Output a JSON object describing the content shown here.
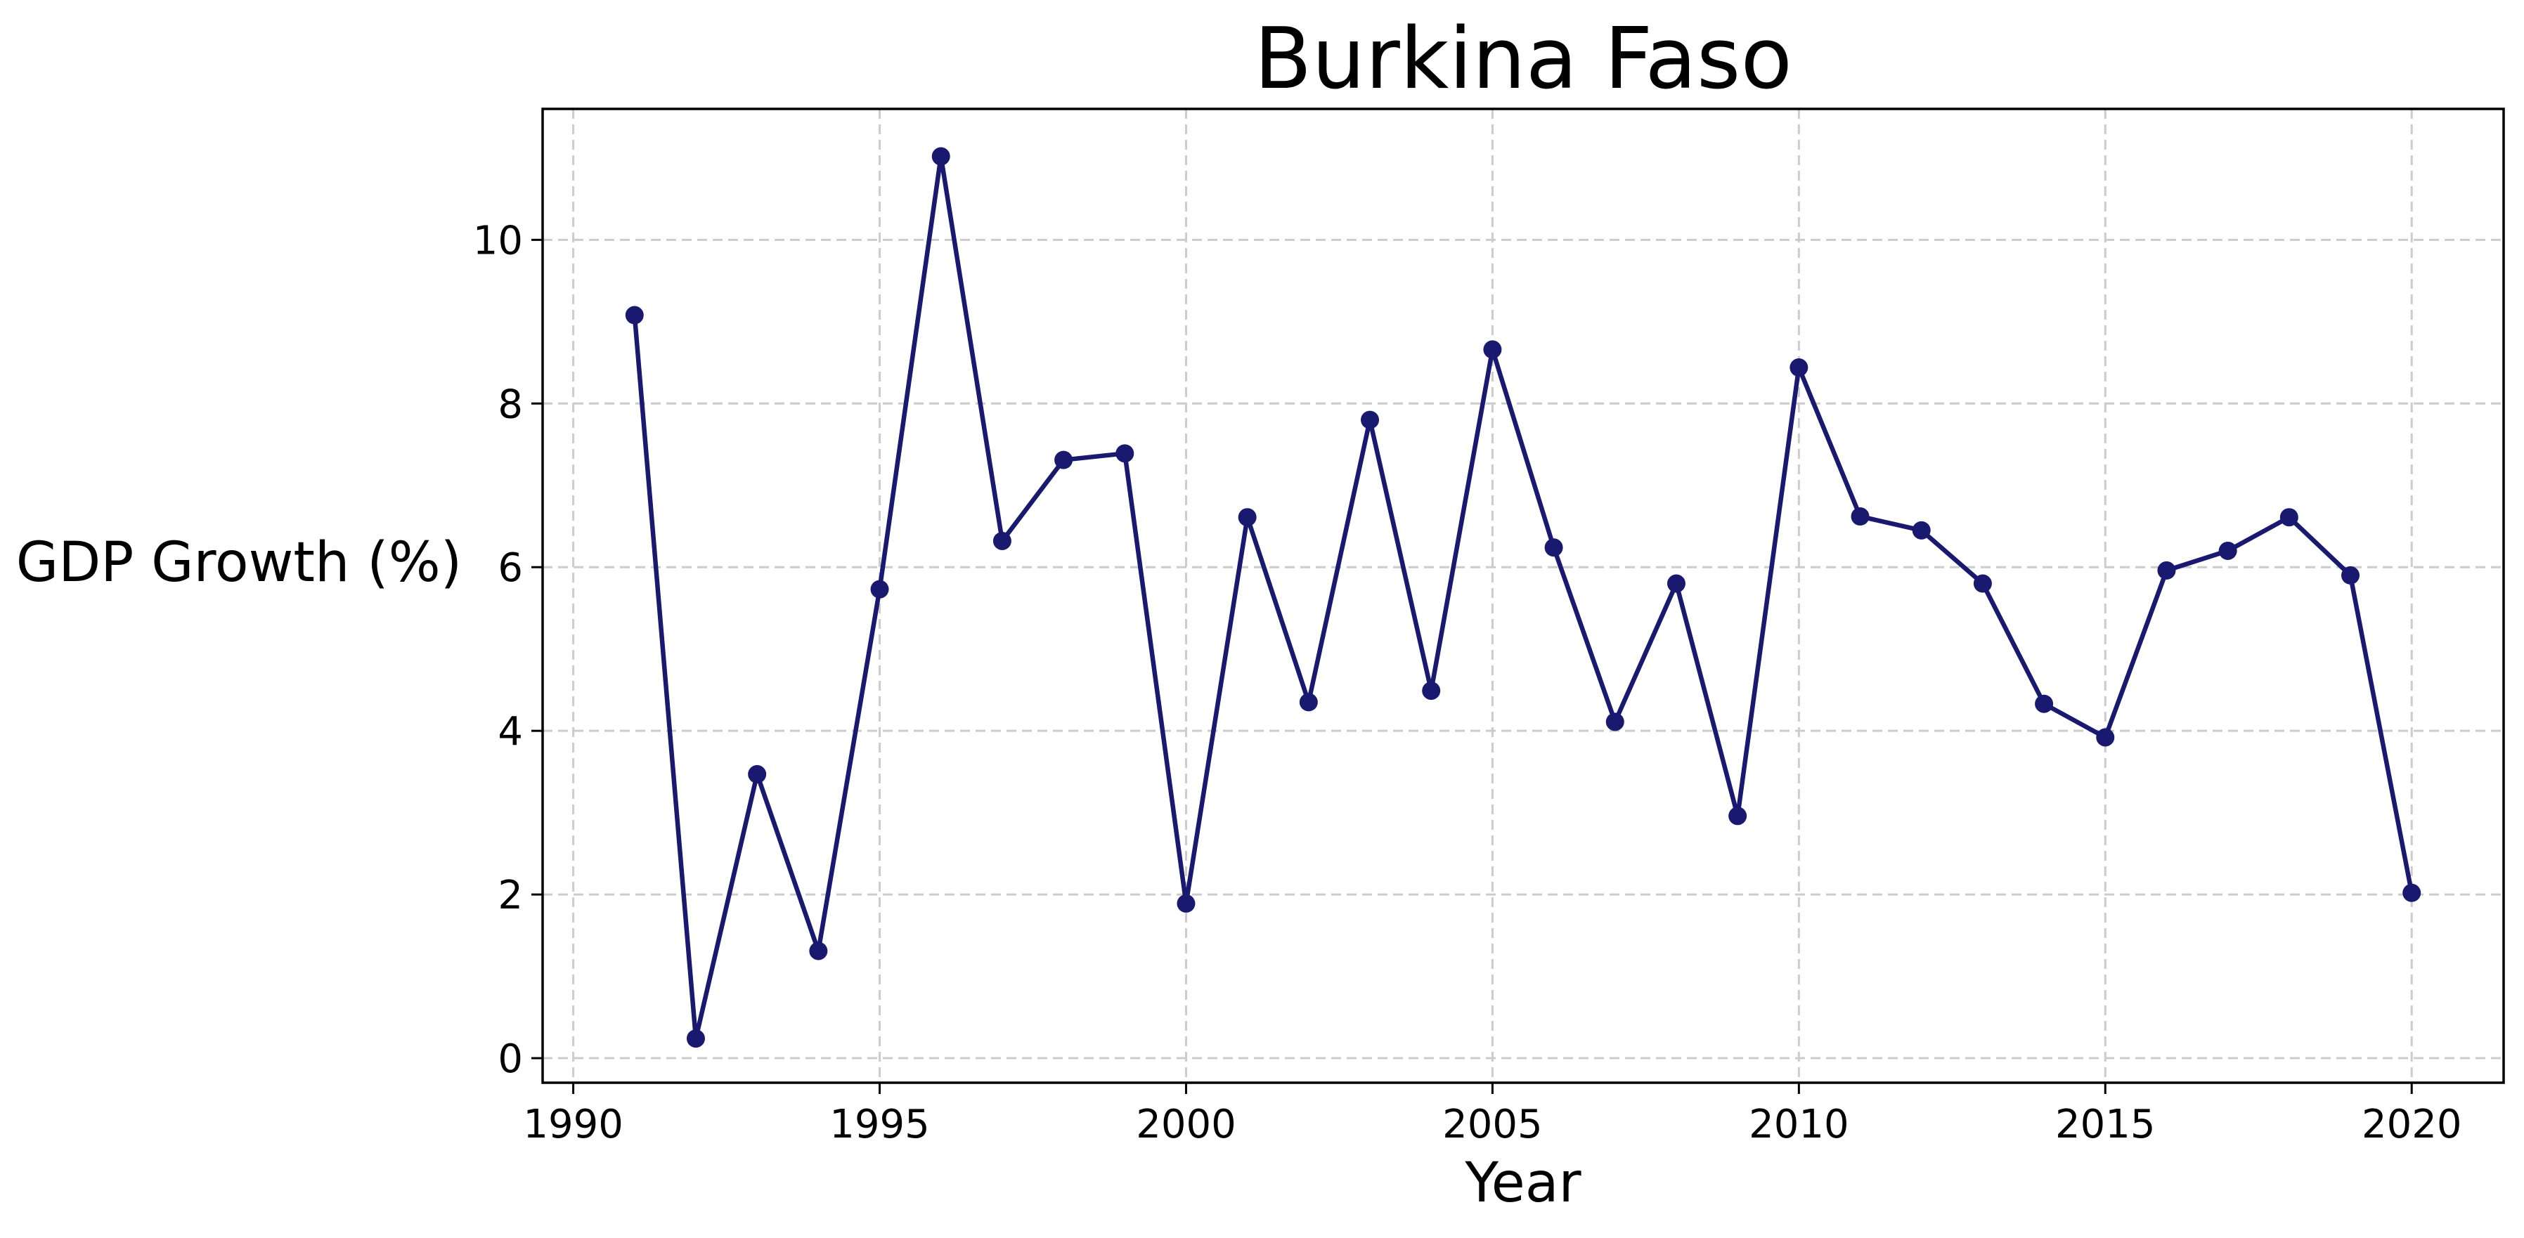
{
  "chart_data": {
    "type": "line",
    "title": "Burkina Faso",
    "xlabel": "Year",
    "ylabel": "GDP Growth (%)",
    "xlim": [
      1989.5,
      2021.5
    ],
    "ylim": [
      -0.3,
      11.6
    ],
    "xticks": [
      1990,
      1995,
      2000,
      2005,
      2010,
      2015,
      2020
    ],
    "yticks": [
      0,
      2,
      4,
      6,
      8,
      10
    ],
    "grid": true,
    "legend": "none",
    "series_color": "#191970",
    "x": [
      1991,
      1992,
      1993,
      1994,
      1995,
      1996,
      1997,
      1998,
      1999,
      2000,
      2001,
      2002,
      2003,
      2004,
      2005,
      2006,
      2007,
      2008,
      2009,
      2010,
      2011,
      2012,
      2013,
      2014,
      2015,
      2016,
      2017,
      2018,
      2019,
      2020
    ],
    "series": [
      {
        "values": [
          9.08,
          0.24,
          3.47,
          1.31,
          5.73,
          11.02,
          6.32,
          7.31,
          7.39,
          1.89,
          6.61,
          4.35,
          7.8,
          4.49,
          8.66,
          6.24,
          4.11,
          5.8,
          2.96,
          8.44,
          6.62,
          6.45,
          5.8,
          4.33,
          3.92,
          5.96,
          6.2,
          6.61,
          5.9,
          2.02
        ]
      }
    ]
  }
}
